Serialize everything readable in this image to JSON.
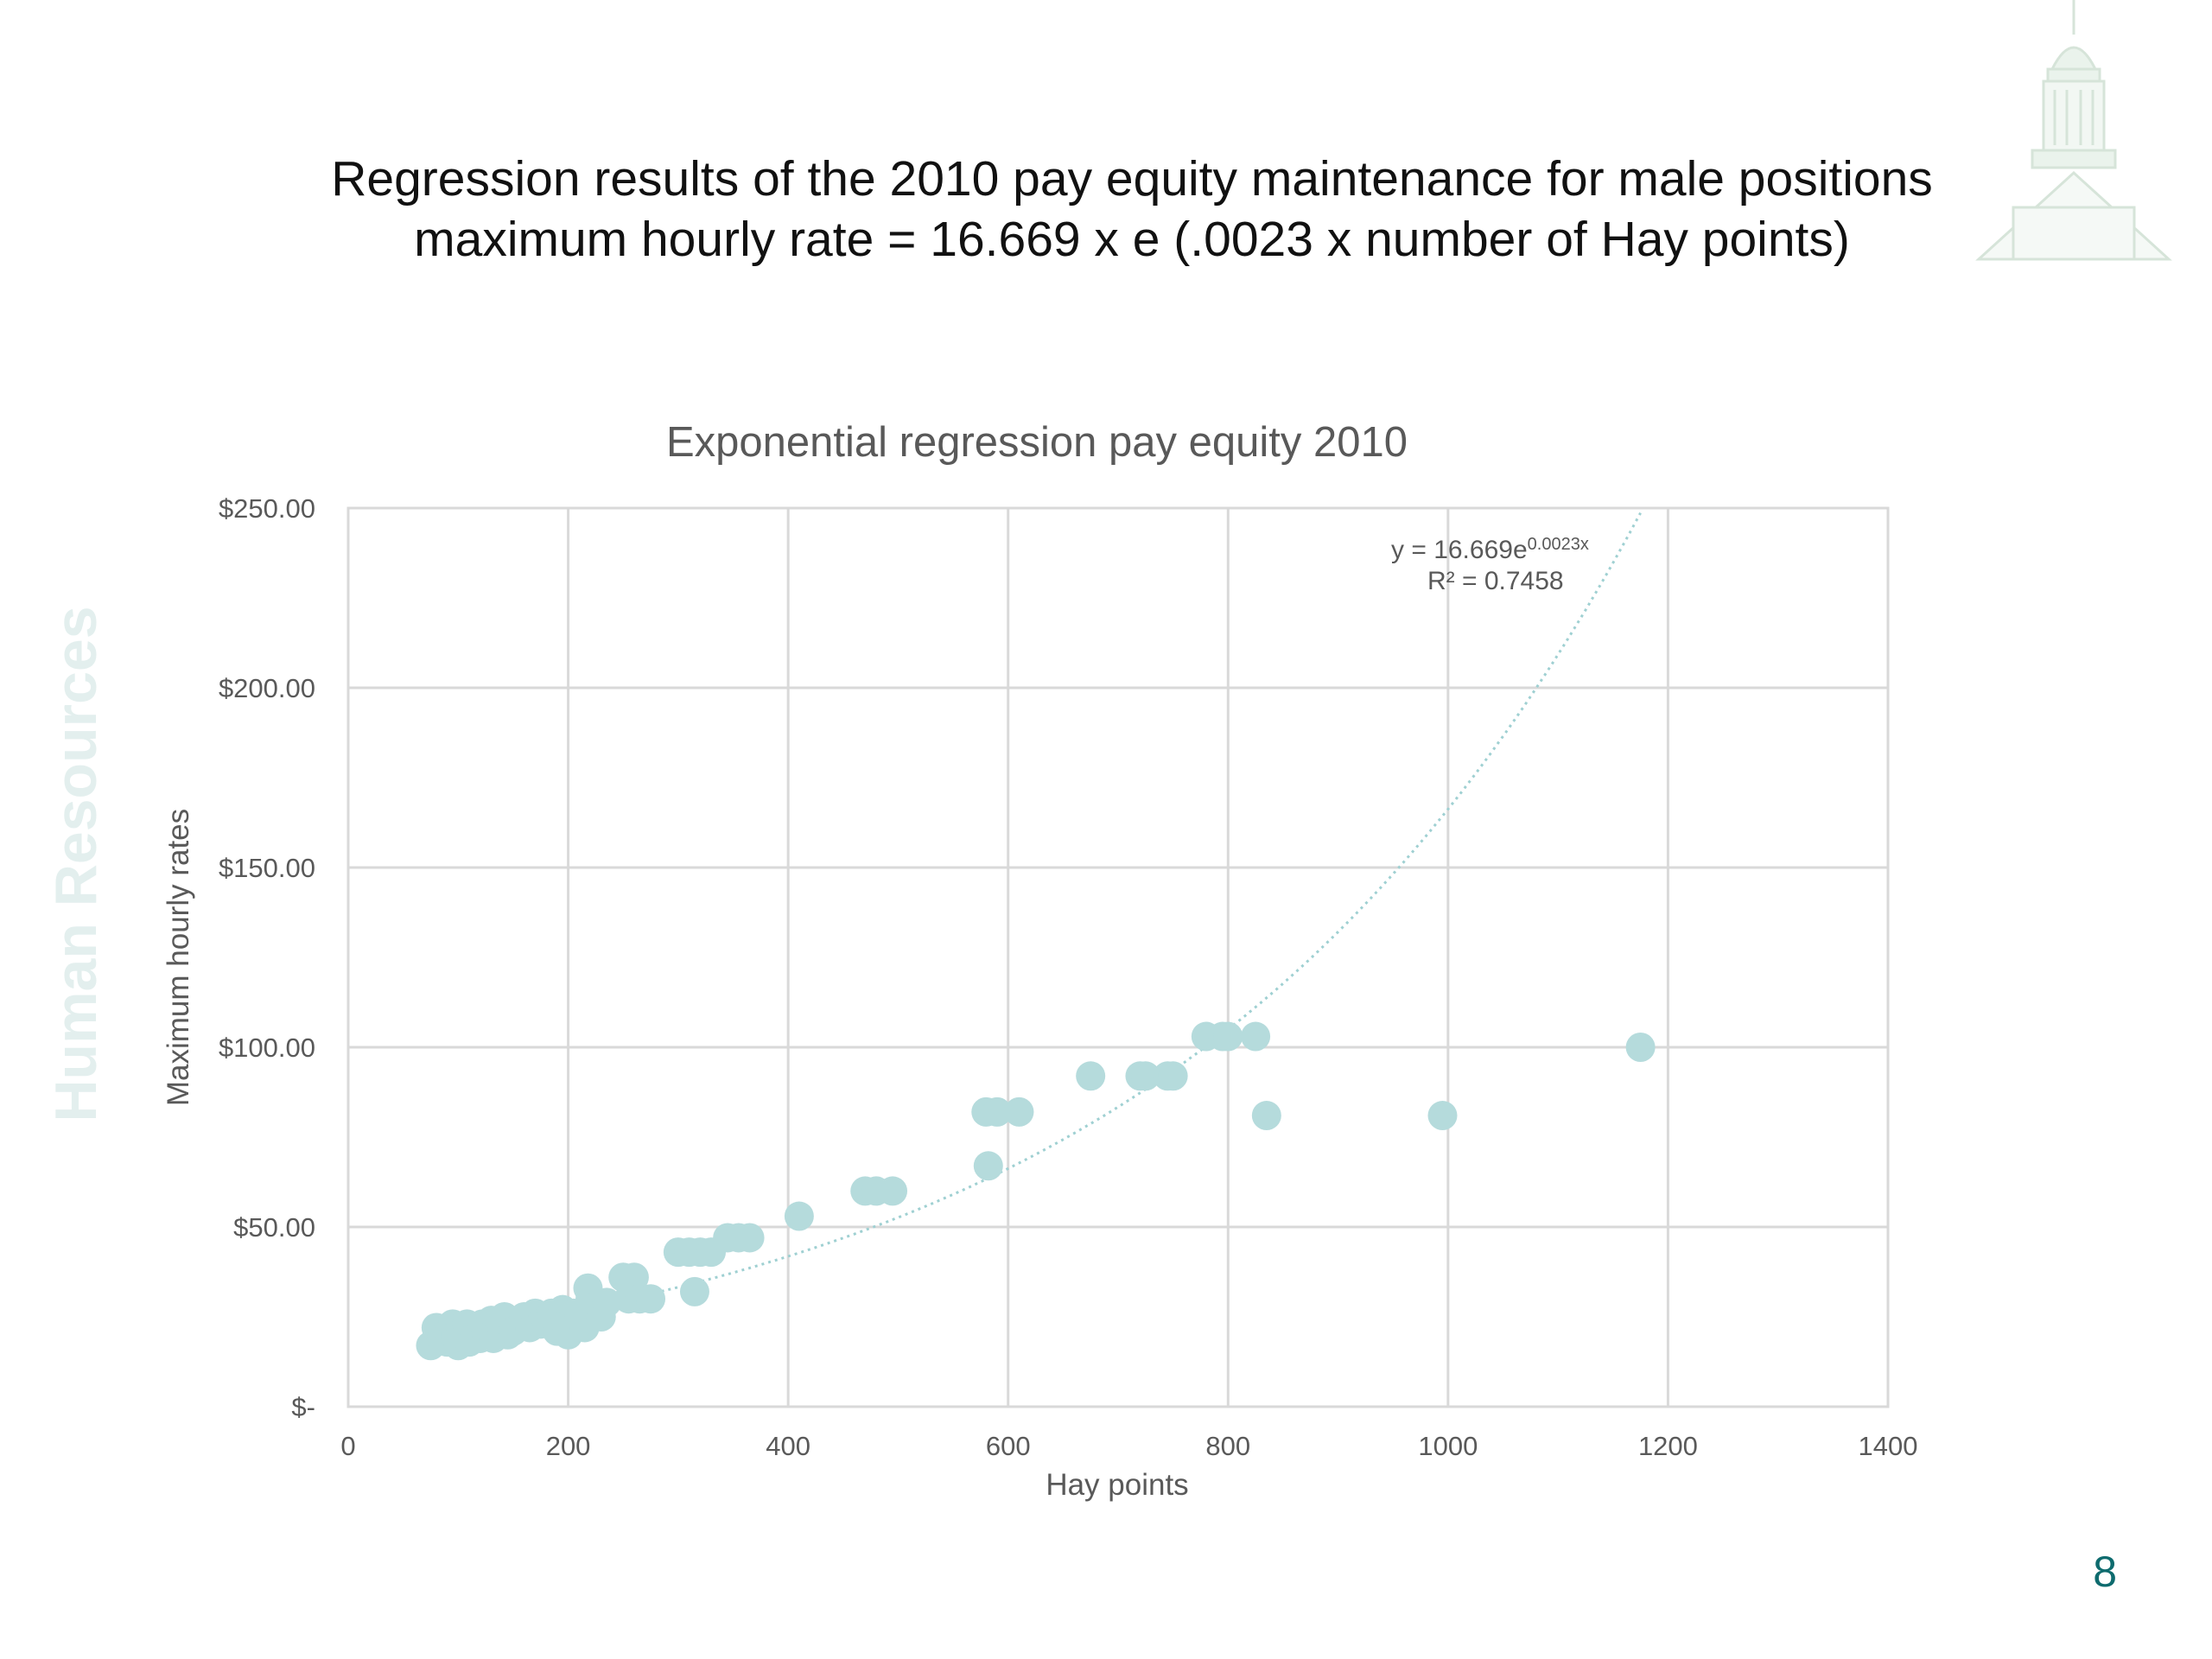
{
  "slide": {
    "title_line1": "Regression results of the 2010 pay equity maintenance for male positions",
    "title_line2": "maximum hourly rate =  16.669 x e (.0023 x number of Hay points)",
    "side_label": "Human Resources",
    "page_number": "8",
    "logo_icon": "capitol-dome-icon"
  },
  "colors": {
    "point": "#b5dbdc",
    "trend": "#9fd0d2",
    "grid": "#d9d9d9",
    "axis_text": "#595959",
    "side_label": "#e3efee",
    "page_number": "#0e6b6e"
  },
  "chart_data": {
    "type": "scatter",
    "title": "Exponential regression pay equity 2010",
    "xlabel": "Hay points",
    "ylabel": "Maximum hourly rates",
    "xlim": [
      0,
      1400
    ],
    "ylim": [
      0,
      250
    ],
    "x_ticks": [
      0,
      200,
      400,
      600,
      800,
      1000,
      1200,
      1400
    ],
    "x_tick_labels": [
      "0",
      "200",
      "400",
      "600",
      "800",
      "1000",
      "1200",
      "1400"
    ],
    "y_ticks": [
      0,
      50,
      100,
      150,
      200,
      250
    ],
    "y_tick_labels": [
      "$-",
      "$50.00",
      "$100.00",
      "$150.00",
      "$200.00",
      "$250.00"
    ],
    "grid": true,
    "legend": "none",
    "trendline": {
      "type": "exponential",
      "a": 16.669,
      "b": 0.0023,
      "x_range": [
        75,
        1175
      ],
      "equation_text": "y = 16.669e",
      "equation_exponent": "0.0023x",
      "r2_text": "R² = 0.7458"
    },
    "points": [
      [
        75,
        17
      ],
      [
        80,
        22
      ],
      [
        85,
        19
      ],
      [
        90,
        18
      ],
      [
        92,
        21
      ],
      [
        95,
        23
      ],
      [
        98,
        20
      ],
      [
        100,
        17
      ],
      [
        102,
        22
      ],
      [
        105,
        19
      ],
      [
        108,
        23
      ],
      [
        110,
        18
      ],
      [
        112,
        21
      ],
      [
        115,
        20
      ],
      [
        118,
        22
      ],
      [
        120,
        19
      ],
      [
        122,
        23
      ],
      [
        125,
        21
      ],
      [
        128,
        20
      ],
      [
        130,
        24
      ],
      [
        132,
        19
      ],
      [
        135,
        22
      ],
      [
        138,
        23
      ],
      [
        140,
        21
      ],
      [
        142,
        25
      ],
      [
        145,
        20
      ],
      [
        150,
        21
      ],
      [
        160,
        25
      ],
      [
        165,
        22
      ],
      [
        170,
        26
      ],
      [
        175,
        23
      ],
      [
        180,
        24
      ],
      [
        185,
        26
      ],
      [
        190,
        21
      ],
      [
        195,
        27
      ],
      [
        198,
        23
      ],
      [
        200,
        20
      ],
      [
        205,
        26
      ],
      [
        210,
        25
      ],
      [
        215,
        22
      ],
      [
        218,
        33
      ],
      [
        220,
        30
      ],
      [
        225,
        28
      ],
      [
        230,
        25
      ],
      [
        235,
        29
      ],
      [
        250,
        36
      ],
      [
        255,
        30
      ],
      [
        260,
        36
      ],
      [
        265,
        30
      ],
      [
        275,
        30
      ],
      [
        300,
        43
      ],
      [
        310,
        43
      ],
      [
        315,
        32
      ],
      [
        320,
        43
      ],
      [
        330,
        43
      ],
      [
        345,
        47
      ],
      [
        355,
        47
      ],
      [
        365,
        47
      ],
      [
        410,
        53
      ],
      [
        470,
        60
      ],
      [
        480,
        60
      ],
      [
        495,
        60
      ],
      [
        580,
        82
      ],
      [
        582,
        67
      ],
      [
        590,
        82
      ],
      [
        610,
        82
      ],
      [
        675,
        92
      ],
      [
        720,
        92
      ],
      [
        725,
        92
      ],
      [
        745,
        92
      ],
      [
        750,
        92
      ],
      [
        780,
        103
      ],
      [
        795,
        103
      ],
      [
        800,
        103
      ],
      [
        825,
        103
      ],
      [
        835,
        81
      ],
      [
        995,
        81
      ],
      [
        1175,
        100
      ]
    ]
  }
}
